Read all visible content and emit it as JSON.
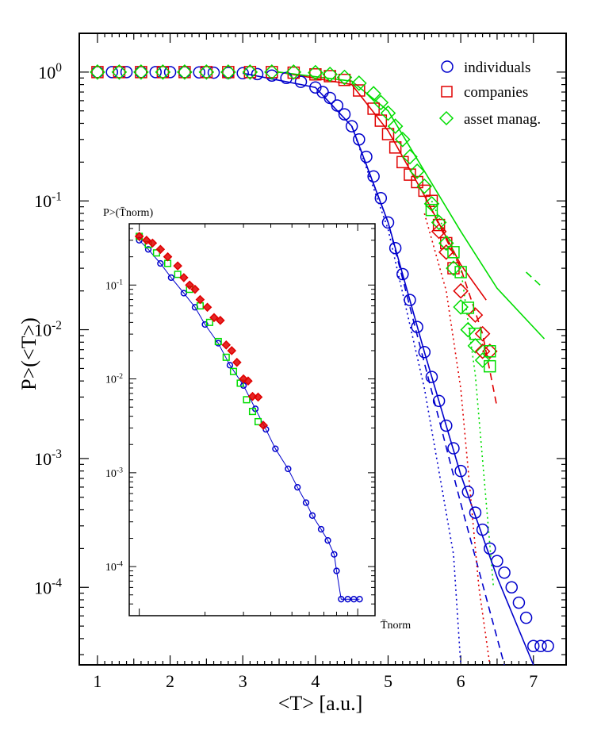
{
  "chart_data": [
    {
      "type": "scatter",
      "title": "",
      "xlabel": "<T> [a.u.]",
      "ylabel": "P>(<T>)",
      "xlim": [
        0.75,
        7.45
      ],
      "ylim": [
        2.5e-05,
        2.0
      ],
      "yscale": "log",
      "x_ticks": [
        1,
        2,
        3,
        4,
        5,
        6,
        7
      ],
      "y_ticks": [
        {
          "value": 1,
          "label": "10",
          "exp": "0"
        },
        {
          "value": 0.1,
          "label": "10",
          "exp": "-1"
        },
        {
          "value": 0.01,
          "label": "10",
          "exp": "-2"
        },
        {
          "value": 0.001,
          "label": "10",
          "exp": "-3"
        },
        {
          "value": 0.0001,
          "label": "10",
          "exp": "-4"
        }
      ],
      "legend_position": "top-right",
      "series": [
        {
          "name": "individuals",
          "marker": "circle",
          "color": "#0000cc",
          "points": [
            [
              1.0,
              1.0
            ],
            [
              1.2,
              1.0
            ],
            [
              1.4,
              1.0
            ],
            [
              1.6,
              1.0
            ],
            [
              1.8,
              1.0
            ],
            [
              2.0,
              1.0
            ],
            [
              2.2,
              0.998
            ],
            [
              2.4,
              0.995
            ],
            [
              2.6,
              0.99
            ],
            [
              2.8,
              0.985
            ],
            [
              3.0,
              0.98
            ],
            [
              3.2,
              0.965
            ],
            [
              3.4,
              0.94
            ],
            [
              3.6,
              0.9
            ],
            [
              3.8,
              0.84
            ],
            [
              4.0,
              0.76
            ],
            [
              4.1,
              0.7
            ],
            [
              4.2,
              0.63
            ],
            [
              4.3,
              0.55
            ],
            [
              4.4,
              0.47
            ],
            [
              4.5,
              0.38
            ],
            [
              4.6,
              0.3
            ],
            [
              4.7,
              0.22
            ],
            [
              4.8,
              0.155
            ],
            [
              4.9,
              0.105
            ],
            [
              5.0,
              0.068
            ],
            [
              5.1,
              0.043
            ],
            [
              5.2,
              0.027
            ],
            [
              5.3,
              0.017
            ],
            [
              5.4,
              0.0105
            ],
            [
              5.5,
              0.0067
            ],
            [
              5.6,
              0.0043
            ],
            [
              5.7,
              0.0028
            ],
            [
              5.8,
              0.0018
            ],
            [
              5.9,
              0.0012
            ],
            [
              6.0,
              0.0008
            ],
            [
              6.1,
              0.00055
            ],
            [
              6.2,
              0.00038
            ],
            [
              6.3,
              0.00028
            ],
            [
              6.4,
              0.0002
            ],
            [
              6.5,
              0.00016
            ],
            [
              6.6,
              0.00013
            ],
            [
              6.7,
              0.0001
            ],
            [
              6.8,
              7.6e-05
            ],
            [
              6.9,
              5.8e-05
            ],
            [
              7.0,
              3.5e-05
            ],
            [
              7.1,
              3.5e-05
            ],
            [
              7.2,
              3.5e-05
            ]
          ]
        },
        {
          "name": "companies",
          "marker": "square",
          "color": "#e00000",
          "points": [
            [
              1.0,
              1.0
            ],
            [
              1.3,
              1.0
            ],
            [
              1.6,
              1.0
            ],
            [
              1.9,
              1.0
            ],
            [
              2.2,
              1.0
            ],
            [
              2.5,
              1.0
            ],
            [
              2.8,
              1.0
            ],
            [
              3.1,
              1.0
            ],
            [
              3.4,
              1.0
            ],
            [
              3.7,
              0.99
            ],
            [
              4.0,
              0.96
            ],
            [
              4.2,
              0.93
            ],
            [
              4.4,
              0.87
            ],
            [
              4.6,
              0.72
            ],
            [
              4.8,
              0.52
            ],
            [
              4.9,
              0.42
            ],
            [
              5.0,
              0.33
            ],
            [
              5.1,
              0.26
            ],
            [
              5.2,
              0.2
            ],
            [
              5.3,
              0.16
            ],
            [
              5.4,
              0.14
            ],
            [
              5.5,
              0.12
            ],
            [
              5.6,
              0.1
            ],
            [
              5.7,
              0.065
            ],
            [
              5.8,
              0.047
            ],
            [
              5.9,
              0.03
            ]
          ]
        },
        {
          "name": "asset manag.",
          "marker": "diamond",
          "color": "#00dd00",
          "points": [
            [
              1.0,
              1.0
            ],
            [
              1.3,
              1.0
            ],
            [
              1.6,
              1.0
            ],
            [
              1.9,
              1.0
            ],
            [
              2.2,
              1.0
            ],
            [
              2.5,
              1.0
            ],
            [
              2.8,
              1.0
            ],
            [
              3.1,
              1.0
            ],
            [
              3.4,
              1.0
            ],
            [
              3.7,
              1.0
            ],
            [
              4.0,
              0.99
            ],
            [
              4.2,
              0.96
            ],
            [
              4.4,
              0.91
            ],
            [
              4.6,
              0.82
            ],
            [
              4.8,
              0.68
            ],
            [
              4.9,
              0.58
            ],
            [
              5.0,
              0.48
            ],
            [
              5.1,
              0.38
            ],
            [
              5.2,
              0.3
            ],
            [
              5.3,
              0.22
            ],
            [
              5.4,
              0.17
            ],
            [
              5.5,
              0.13
            ],
            [
              5.6,
              0.095
            ],
            [
              5.7,
              0.068
            ],
            [
              5.8,
              0.047
            ],
            [
              5.9,
              0.03
            ],
            [
              6.0,
              0.015
            ],
            [
              6.1,
              0.01
            ],
            [
              6.2,
              0.0075
            ],
            [
              6.3,
              0.0058
            ]
          ]
        }
      ],
      "extra_markers": [
        {
          "marker": "diamond",
          "color": "#e00000",
          "points": [
            [
              5.7,
              0.058
            ],
            [
              5.8,
              0.04
            ],
            [
              6.0,
              0.02
            ],
            [
              6.2,
              0.013
            ],
            [
              6.3,
              0.0093
            ],
            [
              6.3,
              0.0068
            ],
            [
              6.4,
              0.0068
            ]
          ]
        },
        {
          "marker": "square",
          "color": "#00dd00",
          "points": [
            [
              5.6,
              0.085
            ],
            [
              5.9,
              0.04
            ],
            [
              6.0,
              0.028
            ],
            [
              6.1,
              0.0148
            ],
            [
              6.2,
              0.0093
            ],
            [
              6.4,
              0.0068
            ],
            [
              6.4,
              0.0052
            ]
          ]
        }
      ],
      "fit_lines": [
        {
          "name": "individuals fit",
          "color": "#0000cc",
          "style": "solid",
          "points": [
            [
              3.0,
              0.98
            ],
            [
              4.0,
              0.76
            ],
            [
              4.5,
              0.38
            ],
            [
              5.0,
              0.068
            ],
            [
              5.5,
              0.0067
            ],
            [
              6.0,
              0.00075
            ],
            [
              6.5,
              0.00012
            ],
            [
              7.0,
              2.5e-05
            ]
          ]
        },
        {
          "name": "individuals dashed",
          "color": "#0000cc",
          "style": "dashed",
          "points": [
            [
              4.5,
              0.38
            ],
            [
              5.0,
              0.068
            ],
            [
              5.5,
              0.0055
            ],
            [
              6.0,
              0.00045
            ],
            [
              6.6,
              2.5e-05
            ]
          ]
        },
        {
          "name": "individuals dotted",
          "color": "#0000cc",
          "style": "dotted",
          "points": [
            [
              4.5,
              0.38
            ],
            [
              5.0,
              0.06
            ],
            [
              5.5,
              0.0035
            ],
            [
              5.9,
              0.00018
            ],
            [
              6.0,
              2.5e-05
            ]
          ]
        },
        {
          "name": "companies fit",
          "color": "#e00000",
          "style": "solid",
          "points": [
            [
              3.5,
              1.0
            ],
            [
              4.5,
              0.8
            ],
            [
              5.0,
              0.35
            ],
            [
              5.5,
              0.11
            ],
            [
              6.0,
              0.032
            ],
            [
              6.35,
              0.017
            ]
          ]
        },
        {
          "name": "companies dashed",
          "color": "#e00000",
          "style": "dashed",
          "points": [
            [
              5.5,
              0.11
            ],
            [
              6.0,
              0.03
            ],
            [
              6.3,
              0.0093
            ],
            [
              6.5,
              0.0025
            ]
          ]
        },
        {
          "name": "companies dotted",
          "color": "#e00000",
          "style": "dotted",
          "points": [
            [
              5.5,
              0.08
            ],
            [
              5.8,
              0.02
            ],
            [
              6.0,
              0.0035
            ],
            [
              6.25,
              0.0001
            ],
            [
              6.4,
              2.5e-05
            ]
          ]
        },
        {
          "name": "asset manag. fit",
          "color": "#00dd00",
          "style": "solid",
          "points": [
            [
              3.5,
              1.0
            ],
            [
              4.5,
              0.85
            ],
            [
              5.0,
              0.5
            ],
            [
              5.5,
              0.17
            ],
            [
              6.0,
              0.058
            ],
            [
              6.5,
              0.021
            ],
            [
              7.15,
              0.0085
            ]
          ]
        },
        {
          "name": "asset manag. dashed",
          "color": "#00dd00",
          "style": "dashed",
          "points": [
            [
              6.9,
              0.028
            ],
            [
              7.1,
              0.022
            ]
          ]
        },
        {
          "name": "asset manag. dotted",
          "color": "#00dd00",
          "style": "dotted",
          "points": [
            [
              5.6,
              0.1
            ],
            [
              6.0,
              0.03
            ],
            [
              6.2,
              0.0045
            ],
            [
              6.45,
              0.0001
            ]
          ]
        }
      ]
    },
    {
      "type": "scatter",
      "title": "",
      "xlabel": "T̄norm",
      "ylabel": "P>(T̄norm)",
      "xscale": "log",
      "yscale": "log",
      "xlim": [
        0.9,
        12.0
      ],
      "ylim": [
        3e-05,
        0.45
      ],
      "y_ticks": [
        {
          "value": 0.1,
          "label": "10",
          "exp": "-1"
        },
        {
          "value": 0.01,
          "label": "10",
          "exp": "-2"
        },
        {
          "value": 0.001,
          "label": "10",
          "exp": "-3"
        },
        {
          "value": 0.0001,
          "label": "10",
          "exp": "-4"
        }
      ],
      "series": [
        {
          "name": "individuals",
          "marker": "circle",
          "color": "#0000cc",
          "points": [
            [
              1.0,
              0.3
            ],
            [
              1.1,
              0.24
            ],
            [
              1.25,
              0.17
            ],
            [
              1.4,
              0.12
            ],
            [
              1.6,
              0.082
            ],
            [
              1.8,
              0.058
            ],
            [
              2.0,
              0.038
            ],
            [
              2.3,
              0.024
            ],
            [
              2.6,
              0.014
            ],
            [
              3.0,
              0.0085
            ],
            [
              3.4,
              0.0048
            ],
            [
              3.8,
              0.0029
            ],
            [
              4.2,
              0.0018
            ],
            [
              4.8,
              0.0011
            ],
            [
              5.3,
              0.0007
            ],
            [
              5.8,
              0.00048
            ],
            [
              6.2,
              0.00035
            ],
            [
              6.8,
              0.00025
            ],
            [
              7.3,
              0.00019
            ],
            [
              7.8,
              0.000135
            ],
            [
              8.0,
              9e-05
            ],
            [
              8.4,
              4.5e-05
            ],
            [
              9.0,
              4.5e-05
            ],
            [
              9.6,
              4.5e-05
            ],
            [
              10.2,
              4.5e-05
            ]
          ]
        },
        {
          "name": "companies",
          "marker": "square",
          "color": "#00dd00",
          "points": [
            [
              1.0,
              0.33
            ],
            [
              1.1,
              0.27
            ],
            [
              1.2,
              0.22
            ],
            [
              1.35,
              0.17
            ],
            [
              1.5,
              0.13
            ],
            [
              1.7,
              0.09
            ],
            [
              1.9,
              0.06
            ],
            [
              2.1,
              0.04
            ],
            [
              2.3,
              0.025
            ],
            [
              2.5,
              0.017
            ],
            [
              2.7,
              0.012
            ],
            [
              2.9,
              0.009
            ],
            [
              3.1,
              0.006
            ],
            [
              3.3,
              0.0045
            ],
            [
              3.5,
              0.0035
            ]
          ]
        },
        {
          "name": "asset manag.",
          "marker": "diamond",
          "color": "#e00000",
          "points": [
            [
              1.0,
              0.33
            ],
            [
              1.08,
              0.3
            ],
            [
              1.15,
              0.28
            ],
            [
              1.25,
              0.24
            ],
            [
              1.35,
              0.2
            ],
            [
              1.5,
              0.16
            ],
            [
              1.6,
              0.12
            ],
            [
              1.7,
              0.1
            ],
            [
              1.8,
              0.09
            ],
            [
              1.9,
              0.07
            ],
            [
              2.05,
              0.058
            ],
            [
              2.2,
              0.045
            ],
            [
              2.35,
              0.042
            ],
            [
              2.5,
              0.023
            ],
            [
              2.65,
              0.02
            ],
            [
              2.8,
              0.015
            ],
            [
              3.0,
              0.01
            ],
            [
              3.15,
              0.0095
            ],
            [
              3.3,
              0.0065
            ],
            [
              3.5,
              0.0064
            ],
            [
              3.7,
              0.0032
            ]
          ]
        }
      ]
    }
  ]
}
